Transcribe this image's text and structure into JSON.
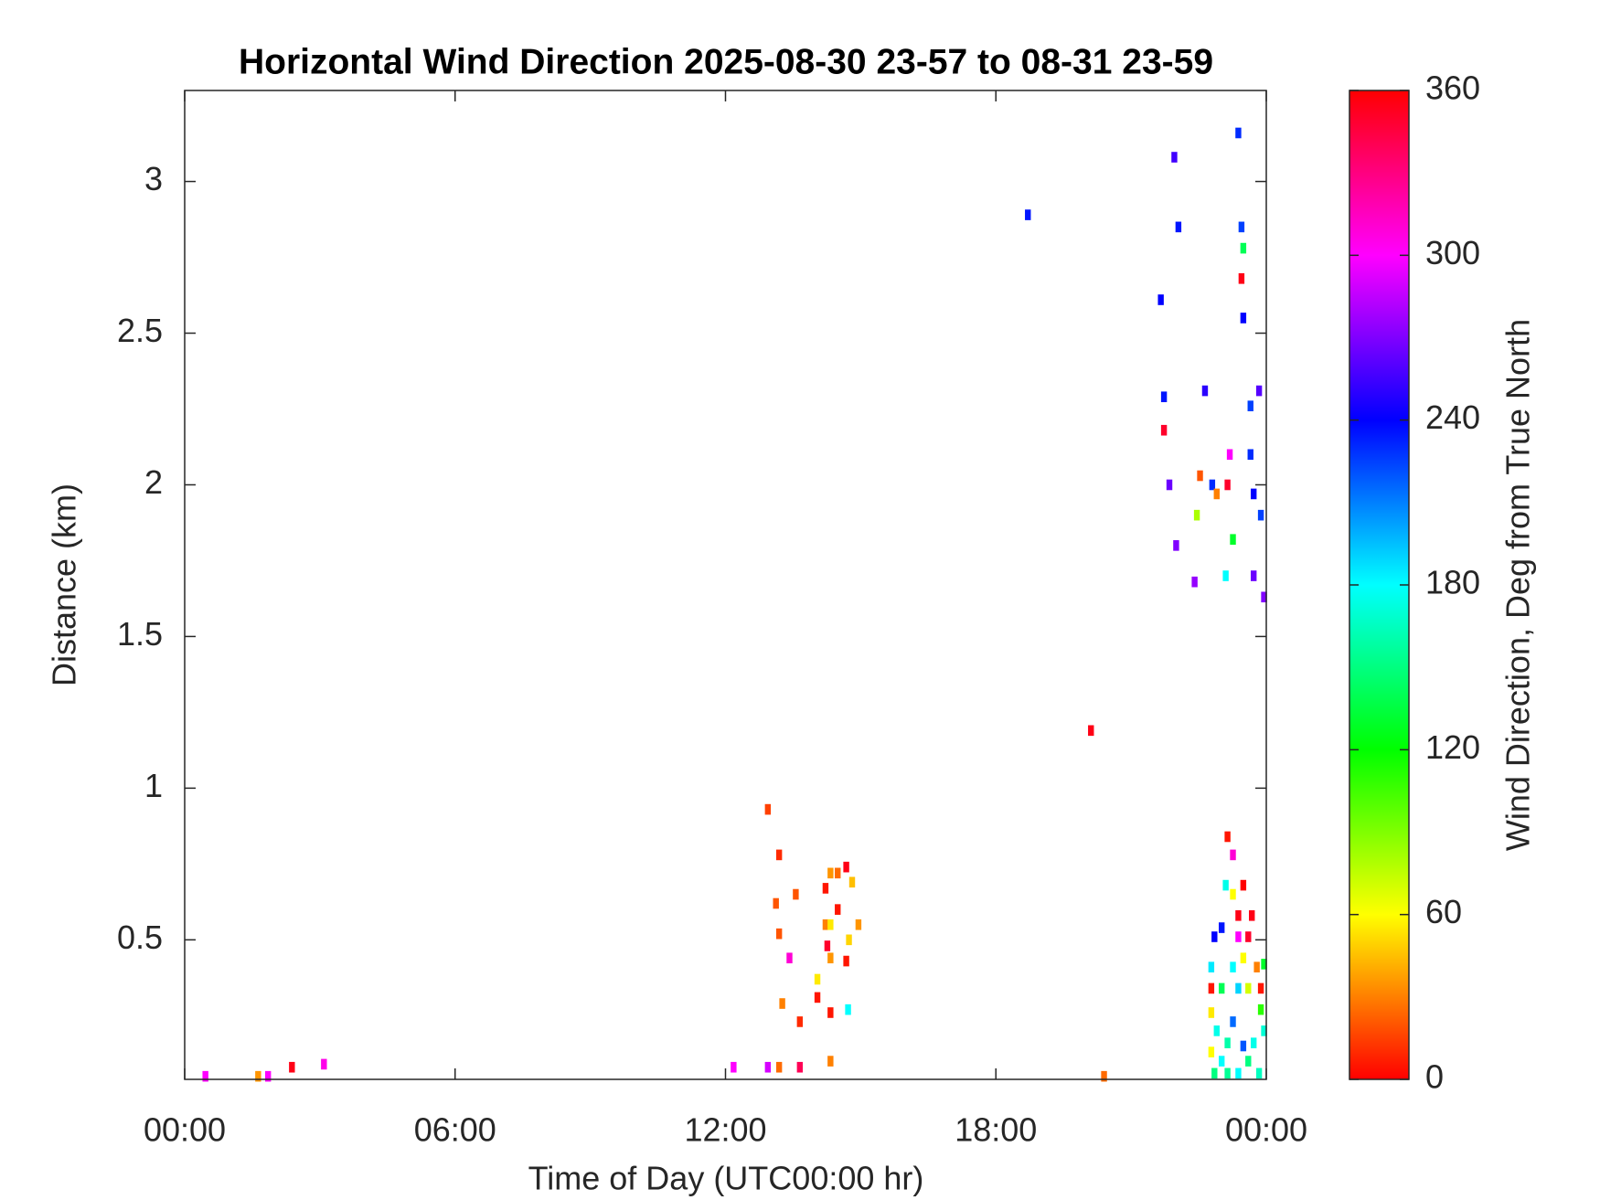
{
  "chart_data": {
    "type": "scatter",
    "title": "Horizontal Wind Direction 2025-08-30 23-57 to 08-31 23-59",
    "x_label": "Time of Day (UTC00:00 hr)",
    "y_label": "Distance (km)",
    "colorbar_label": "Wind Direction, Deg from True North",
    "colormap": "hsv",
    "xlim": [
      0,
      24
    ],
    "xticks": [
      {
        "value": 0,
        "label": "00:00"
      },
      {
        "value": 6,
        "label": "06:00"
      },
      {
        "value": 12,
        "label": "12:00"
      },
      {
        "value": 18,
        "label": "18:00"
      },
      {
        "value": 24,
        "label": "00:00"
      }
    ],
    "ylim": [
      0.04,
      3.3
    ],
    "yticks": [
      0.5,
      1,
      1.5,
      2,
      2.5,
      3
    ],
    "clim": [
      0,
      360
    ],
    "cticks": [
      0,
      60,
      120,
      180,
      240,
      300,
      360
    ],
    "x": [
      0.46,
      1.63,
      1.85,
      2.38,
      3.09,
      12.18,
      12.94,
      13.19,
      13.65,
      14.33,
      12.94,
      13.19,
      13.12,
      13.19,
      13.56,
      13.42,
      13.26,
      13.65,
      14.04,
      14.04,
      14.22,
      14.33,
      14.49,
      14.68,
      14.81,
      14.49,
      14.22,
      14.33,
      14.26,
      14.33,
      14.74,
      14.95,
      14.68,
      14.72,
      14.33,
      18.71,
      20.11,
      20.4,
      21.66,
      21.73,
      21.73,
      21.96,
      22.05,
      21.85,
      22.0,
      22.41,
      22.53,
      22.46,
      22.64,
      22.8,
      22.9,
      23.14,
      23.19,
      23.26,
      23.1,
      23.38,
      23.45,
      23.45,
      23.49,
      23.49,
      23.65,
      23.72,
      23.72,
      23.84,
      23.88,
      23.95,
      23.65,
      23.14,
      23.26,
      23.1,
      23.26,
      23.38,
      23.49,
      23.01,
      22.85,
      22.78,
      22.78,
      22.78,
      22.9,
      22.78,
      22.85,
      23.01,
      23.14,
      23.26,
      23.38,
      23.49,
      23.6,
      23.68,
      23.79,
      23.88,
      23.95,
      23.88,
      23.95,
      23.72,
      23.6,
      23.38,
      23.14,
      23.84,
      23.49,
      23.01,
      23.26,
      23.6,
      23.38
    ],
    "y": [
      0.05,
      0.05,
      0.05,
      0.08,
      0.09,
      0.08,
      0.08,
      0.08,
      0.08,
      0.1,
      0.93,
      0.78,
      0.62,
      0.52,
      0.65,
      0.44,
      0.29,
      0.23,
      0.31,
      0.37,
      0.67,
      0.72,
      0.72,
      0.74,
      0.69,
      0.6,
      0.55,
      0.55,
      0.48,
      0.44,
      0.5,
      0.55,
      0.43,
      0.27,
      0.26,
      2.89,
      1.19,
      0.05,
      2.61,
      2.29,
      2.18,
      3.08,
      2.85,
      2.0,
      1.8,
      1.68,
      2.03,
      1.9,
      2.31,
      2.0,
      1.97,
      2.0,
      2.1,
      1.82,
      1.7,
      3.16,
      2.85,
      2.68,
      2.78,
      2.55,
      2.1,
      1.97,
      1.7,
      2.31,
      1.9,
      1.63,
      2.26,
      0.84,
      0.78,
      0.68,
      0.65,
      0.58,
      0.68,
      0.54,
      0.51,
      0.41,
      0.34,
      0.26,
      0.2,
      0.13,
      0.06,
      0.1,
      0.16,
      0.23,
      0.34,
      0.44,
      0.51,
      0.58,
      0.41,
      0.34,
      0.42,
      0.27,
      0.2,
      0.16,
      0.1,
      0.06,
      0.06,
      0.06,
      0.15,
      0.34,
      0.41,
      0.34,
      0.51
    ],
    "values": [
      300,
      35,
      300,
      355,
      305,
      300,
      290,
      25,
      340,
      30,
      15,
      10,
      20,
      20,
      20,
      310,
      30,
      10,
      5,
      55,
      5,
      35,
      25,
      355,
      45,
      5,
      30,
      55,
      350,
      35,
      50,
      35,
      5,
      180,
      5,
      235,
      355,
      25,
      240,
      235,
      350,
      255,
      235,
      265,
      270,
      275,
      20,
      80,
      250,
      230,
      30,
      350,
      300,
      130,
      180,
      230,
      225,
      355,
      140,
      240,
      230,
      240,
      265,
      260,
      225,
      270,
      225,
      5,
      310,
      175,
      60,
      355,
      0,
      235,
      240,
      185,
      5,
      55,
      175,
      60,
      150,
      180,
      160,
      215,
      190,
      60,
      350,
      355,
      30,
      5,
      130,
      110,
      170,
      175,
      150,
      180,
      155,
      165,
      220,
      140,
      180,
      70,
      300
    ]
  }
}
